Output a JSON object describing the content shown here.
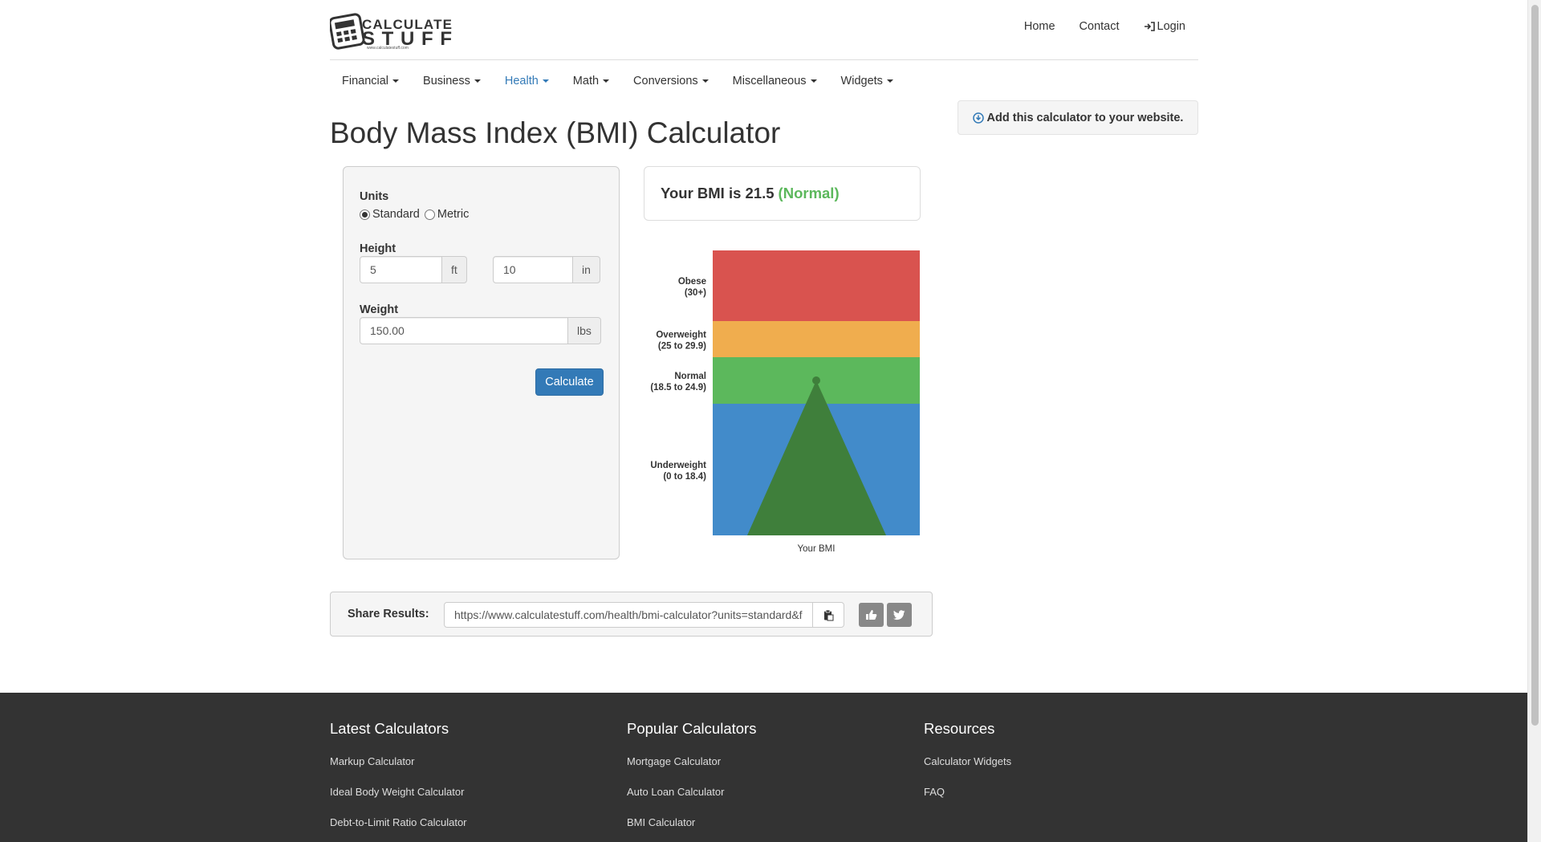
{
  "header": {
    "logo_text": "CALCULATE STUFF",
    "logo_url_text": "www.calculatestuff.com",
    "top_nav": [
      "Home",
      "Contact",
      "Login"
    ]
  },
  "main_nav": [
    "Financial",
    "Business",
    "Health",
    "Math",
    "Conversions",
    "Miscellaneous",
    "Widgets"
  ],
  "widget_box": {
    "label": "Add this calculator to your website."
  },
  "page_title": "Body Mass Index (BMI) Calculator",
  "form": {
    "units_label": "Units",
    "unit_options": [
      "Standard",
      "Metric"
    ],
    "selected_unit": "Standard",
    "height_label": "Height",
    "height_ft": "5",
    "height_ft_unit": "ft",
    "height_in": "10",
    "height_in_unit": "in",
    "weight_label": "Weight",
    "weight_value": "150.00",
    "weight_unit": "lbs",
    "calculate_label": "Calculate"
  },
  "result": {
    "prefix": "Your BMI is 21.5",
    "status": "(Normal)",
    "status_color": "#5cb85c"
  },
  "chart_data": {
    "type": "area",
    "title": "",
    "xlabel": "Your BMI",
    "bands": [
      {
        "name": "Obese",
        "range": "(30+)",
        "color": "#d9534f"
      },
      {
        "name": "Overweight",
        "range": "(25 to 29.9)",
        "color": "#f0ad4e"
      },
      {
        "name": "Normal",
        "range": "(18.5 to 24.9)",
        "color": "#5cb85c"
      },
      {
        "name": "Underweight",
        "range": "(0 to 18.4)",
        "color": "#428bca"
      }
    ],
    "marker_value": 21.5,
    "marker_color": "#3f7f3b"
  },
  "share": {
    "label": "Share Results:",
    "url": "https://www.calculatestuff.com/health/bmi-calculator?units=standard&f"
  },
  "footer": {
    "columns": [
      {
        "title": "Latest Calculators",
        "links": [
          "Markup Calculator",
          "Ideal Body Weight Calculator",
          "Debt-to-Limit Ratio Calculator"
        ]
      },
      {
        "title": "Popular Calculators",
        "links": [
          "Mortgage Calculator",
          "Auto Loan Calculator",
          "BMI Calculator"
        ]
      },
      {
        "title": "Resources",
        "links": [
          "Calculator Widgets",
          "FAQ"
        ]
      }
    ]
  }
}
